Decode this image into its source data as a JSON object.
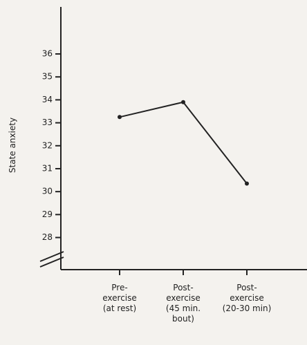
{
  "chart_data": {
    "type": "line",
    "y_label": "State anxiety",
    "categories": [
      "Pre-\nexercise\n(at rest)",
      "Post-\nexercise\n(45 min.\nbout)",
      "Post-\nexercise\n(20-30 min)"
    ],
    "values": [
      33.25,
      33.9,
      30.35
    ],
    "color": "#222222",
    "ylim": [
      26.6,
      38.05
    ],
    "yticks": [
      28,
      29,
      30,
      31,
      32,
      33,
      34,
      35,
      36
    ]
  }
}
